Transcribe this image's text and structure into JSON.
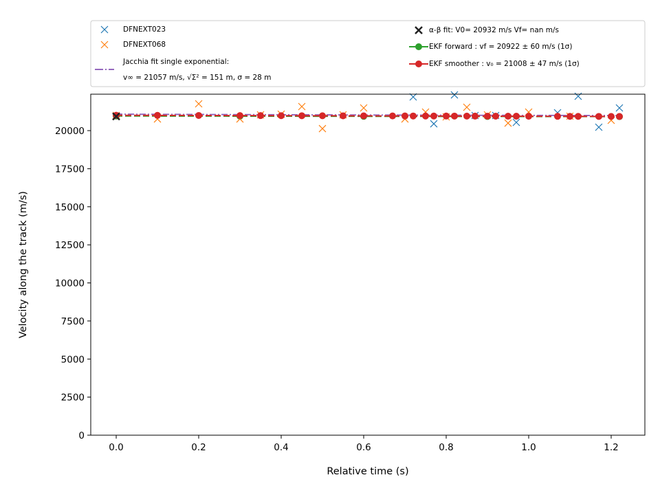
{
  "chart_data": {
    "type": "scatter",
    "xlabel": "Relative time (s)",
    "ylabel": "Velocity along the track (m/s)",
    "xlim": [
      -0.0617,
      1.2817
    ],
    "ylim": [
      0,
      22393
    ],
    "xticks": [
      {
        "value": 0,
        "label": "0.0"
      },
      0.2,
      0.4,
      0.6,
      0.8,
      {
        "value": 1,
        "label": "1.0"
      },
      1.2
    ],
    "yticks": [
      0,
      2500,
      5000,
      7500,
      10000,
      12500,
      15000,
      17500,
      20000
    ],
    "series": [
      {
        "name": "DFNEXT023",
        "color": "#1f77b4",
        "marker": "x",
        "line": "none",
        "x": [
          0.72,
          0.77,
          0.82,
          0.87,
          0.92,
          0.97,
          1.07,
          1.12,
          1.17,
          1.22
        ],
        "values": [
          22212,
          20451,
          22347,
          20993,
          20993,
          20542,
          21174,
          22257,
          20226,
          21490
        ]
      },
      {
        "name": "DFNEXT068",
        "color": "#ff7f0e",
        "marker": "x",
        "line": "none",
        "x": [
          0,
          0.1,
          0.2,
          0.3,
          0.35,
          0.4,
          0.45,
          0.5,
          0.55,
          0.6,
          0.7,
          0.75,
          0.8,
          0.85,
          0.9,
          0.95,
          1.0,
          1.1,
          1.2
        ],
        "values": [
          20993,
          20767,
          21761,
          20767,
          21038,
          21083,
          21580,
          20135,
          21038,
          21490,
          20767,
          21219,
          20903,
          21535,
          21038,
          20496,
          21219,
          20948,
          20677
        ]
      },
      {
        "name": "Jacchia fit single exponential:\nv∞ = 21057 m/s, √Σ² = 151 m, σ = 28 m",
        "color": "#9467bd",
        "marker": "none",
        "line": "dashdot",
        "x": [
          0,
          0.3,
          0.6,
          0.9,
          1.22
        ],
        "values": [
          21080,
          21050,
          21025,
          21005,
          20990
        ]
      },
      {
        "name": "α-β fit: V0= 20932 m/s   Vf= nan m/s",
        "color": "#222222",
        "marker": "X",
        "line": "none",
        "x": [
          0
        ],
        "values": [
          20932
        ]
      },
      {
        "name": "EKF forward : vf =  20922 ± 60 m/s (1σ)",
        "color": "#2ca02c",
        "marker": "o",
        "line": "dashed",
        "x": [
          0,
          0.3,
          0.6,
          0.9,
          1.22
        ],
        "values": [
          20960,
          20950,
          20940,
          20930,
          20922
        ]
      },
      {
        "name": "EKF smoother : v₀ =  21008 ± 47 m/s (1σ)",
        "color": "#d62728",
        "marker": "o",
        "line": "dashed",
        "x": [
          0,
          0.1,
          0.2,
          0.3,
          0.35,
          0.4,
          0.45,
          0.5,
          0.55,
          0.6,
          0.67,
          0.7,
          0.72,
          0.75,
          0.77,
          0.8,
          0.82,
          0.85,
          0.87,
          0.9,
          0.92,
          0.95,
          0.97,
          1.0,
          1.07,
          1.1,
          1.12,
          1.17,
          1.2,
          1.22
        ],
        "values": [
          21008,
          21002,
          20995,
          20989,
          20986,
          20982,
          20979,
          20976,
          20973,
          20970,
          20965,
          20963,
          20962,
          20960,
          20959,
          20957,
          20956,
          20954,
          20952,
          20950,
          20949,
          20947,
          20946,
          20944,
          20940,
          20938,
          20936,
          20933,
          20931,
          20930
        ]
      }
    ]
  }
}
